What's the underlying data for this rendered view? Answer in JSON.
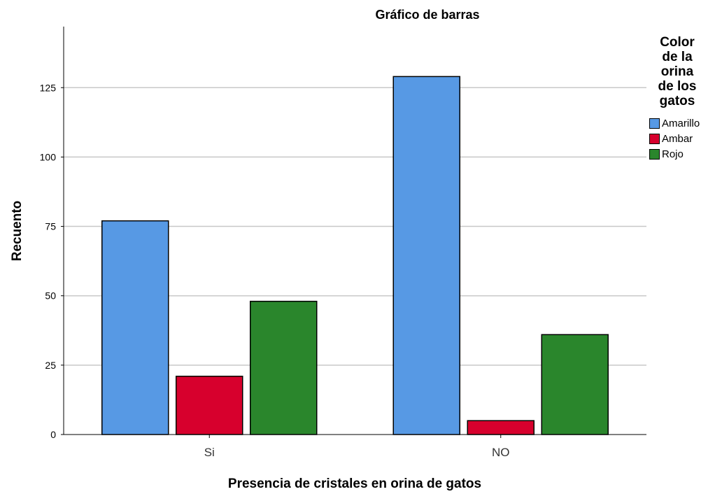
{
  "chart_data": {
    "type": "bar",
    "title": "Gráfico de barras",
    "xlabel": "Presencia de cristales en orina de gatos",
    "ylabel": "Recuento",
    "categories": [
      "Si",
      "NO"
    ],
    "series": [
      {
        "name": "Amarillo",
        "values": [
          77,
          129
        ],
        "color": "#5799e4"
      },
      {
        "name": "Ambar",
        "values": [
          21,
          5
        ],
        "color": "#d7002d"
      },
      {
        "name": "Rojo",
        "values": [
          48,
          36
        ],
        "color": "#2a862c"
      }
    ],
    "ylim": [
      0,
      147
    ],
    "yticks": [
      0,
      25,
      50,
      75,
      100,
      125
    ],
    "grid": true,
    "legend": {
      "title_lines": [
        "Color",
        "de la",
        "orina",
        "de los",
        "gatos"
      ],
      "position": "right"
    }
  }
}
